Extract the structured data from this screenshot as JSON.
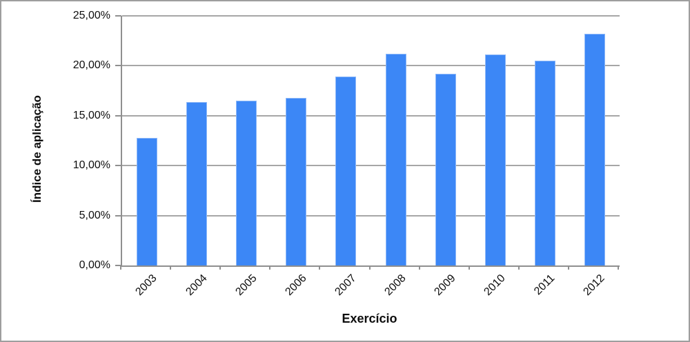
{
  "chart_data": {
    "type": "bar",
    "title": "",
    "categories": [
      "2003",
      "2004",
      "2005",
      "2006",
      "2007",
      "2008",
      "2009",
      "2010",
      "2011",
      "2012"
    ],
    "values": [
      12.8,
      16.4,
      16.5,
      16.8,
      18.9,
      21.2,
      19.2,
      21.1,
      20.5,
      23.2
    ],
    "xlabel": "Exercício",
    "ylabel": "Índice de aplicação",
    "ylim": [
      0,
      25
    ],
    "ytick_step": 5,
    "ytick_labels": [
      "0,00%",
      "5,00%",
      "10,00%",
      "15,00%",
      "20,00%",
      "25,00%"
    ],
    "grid": true,
    "legend": false,
    "bar_color": "#3c87f6",
    "bar_edge_color": "#8fb9f8",
    "gridline_color": "#a6a6a6",
    "axis_color": "#8f8f8f",
    "text_color": "#0d0d0d"
  }
}
